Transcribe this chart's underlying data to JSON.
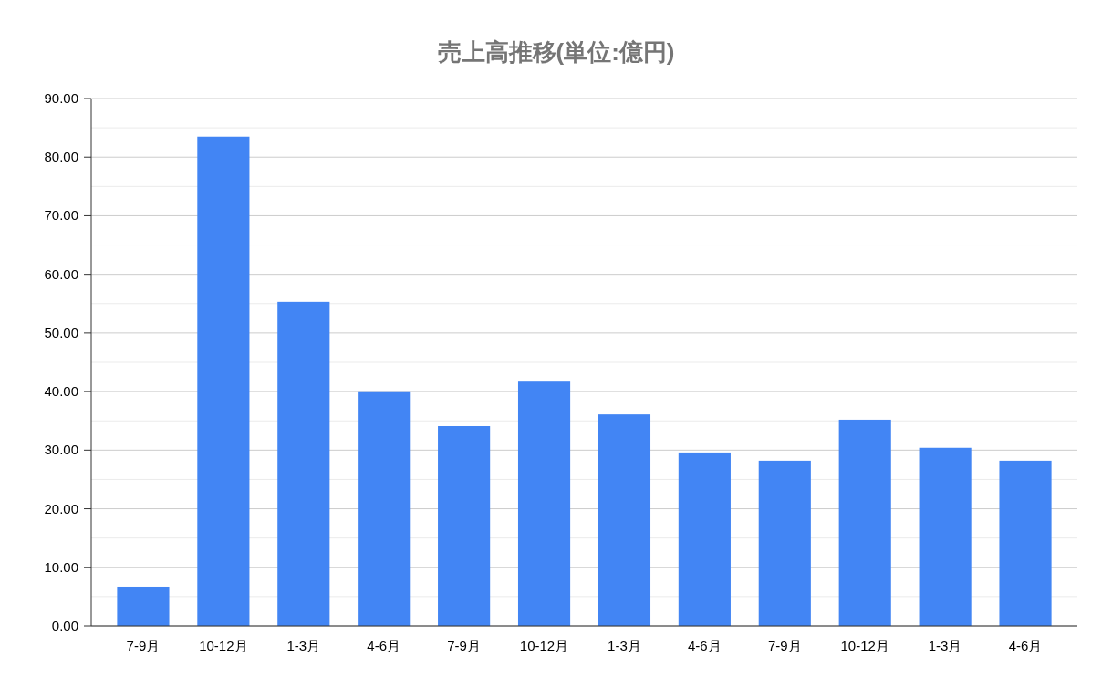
{
  "chart_data": {
    "type": "bar",
    "title": "売上高推移(単位:億円)",
    "categories": [
      "7-9月",
      "10-12月",
      "1-3月",
      "4-6月",
      "7-9月",
      "10-12月",
      "1-3月",
      "4-6月",
      "7-9月",
      "10-12月",
      "1-3月",
      "4-6月"
    ],
    "values": [
      6.7,
      83.5,
      55.3,
      39.9,
      34.1,
      41.7,
      36.1,
      29.6,
      28.2,
      35.2,
      30.4,
      28.2
    ],
    "color": "#4285f4",
    "ylim": [
      0,
      90
    ],
    "yticks": [
      {
        "value": 0,
        "label": "0.00"
      },
      {
        "value": 5,
        "label": null
      },
      {
        "value": 10,
        "label": "10.00"
      },
      {
        "value": 15,
        "label": null
      },
      {
        "value": 20,
        "label": "20.00"
      },
      {
        "value": 25,
        "label": null
      },
      {
        "value": 30,
        "label": "30.00"
      },
      {
        "value": 35,
        "label": null
      },
      {
        "value": 40,
        "label": "40.00"
      },
      {
        "value": 45,
        "label": null
      },
      {
        "value": 50,
        "label": "50.00"
      },
      {
        "value": 55,
        "label": null
      },
      {
        "value": 60,
        "label": "60.00"
      },
      {
        "value": 65,
        "label": null
      },
      {
        "value": 70,
        "label": "70.00"
      },
      {
        "value": 75,
        "label": null
      },
      {
        "value": 80,
        "label": "80.00"
      },
      {
        "value": 85,
        "label": null
      },
      {
        "value": 90,
        "label": "90.00"
      }
    ],
    "grid": "y"
  }
}
